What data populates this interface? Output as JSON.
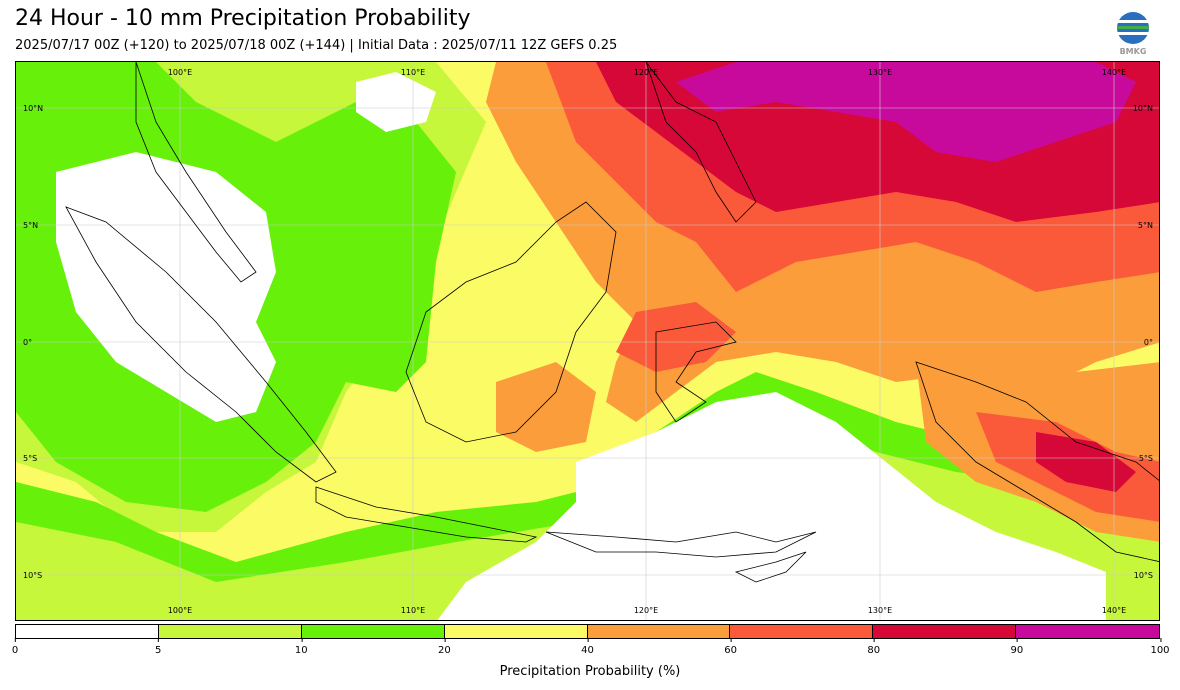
{
  "header": {
    "title": "24 Hour - 10 mm Precipitation Probability",
    "subtitle": "2025/07/17 00Z (+120) to 2025/07/18 00Z (+144) | Initial Data : 2025/07/11 12Z GEFS 0.25",
    "logo_text": "BMKG"
  },
  "map": {
    "lon_labels": [
      "100°E",
      "110°E",
      "120°E",
      "130°E",
      "140°E"
    ],
    "lat_labels": [
      "10°N",
      "5°N",
      "0°",
      "5°S",
      "10°S"
    ]
  },
  "colorbar": {
    "label": "Precipitation Probability (%)",
    "ticks": [
      "0",
      "5",
      "10",
      "20",
      "40",
      "60",
      "80",
      "90",
      "100"
    ],
    "colors": [
      "#ffffff",
      "#c6f73a",
      "#66f00a",
      "#fbfb66",
      "#fb9d3a",
      "#fb5a3a",
      "#d60838",
      "#c80a9c"
    ]
  }
}
